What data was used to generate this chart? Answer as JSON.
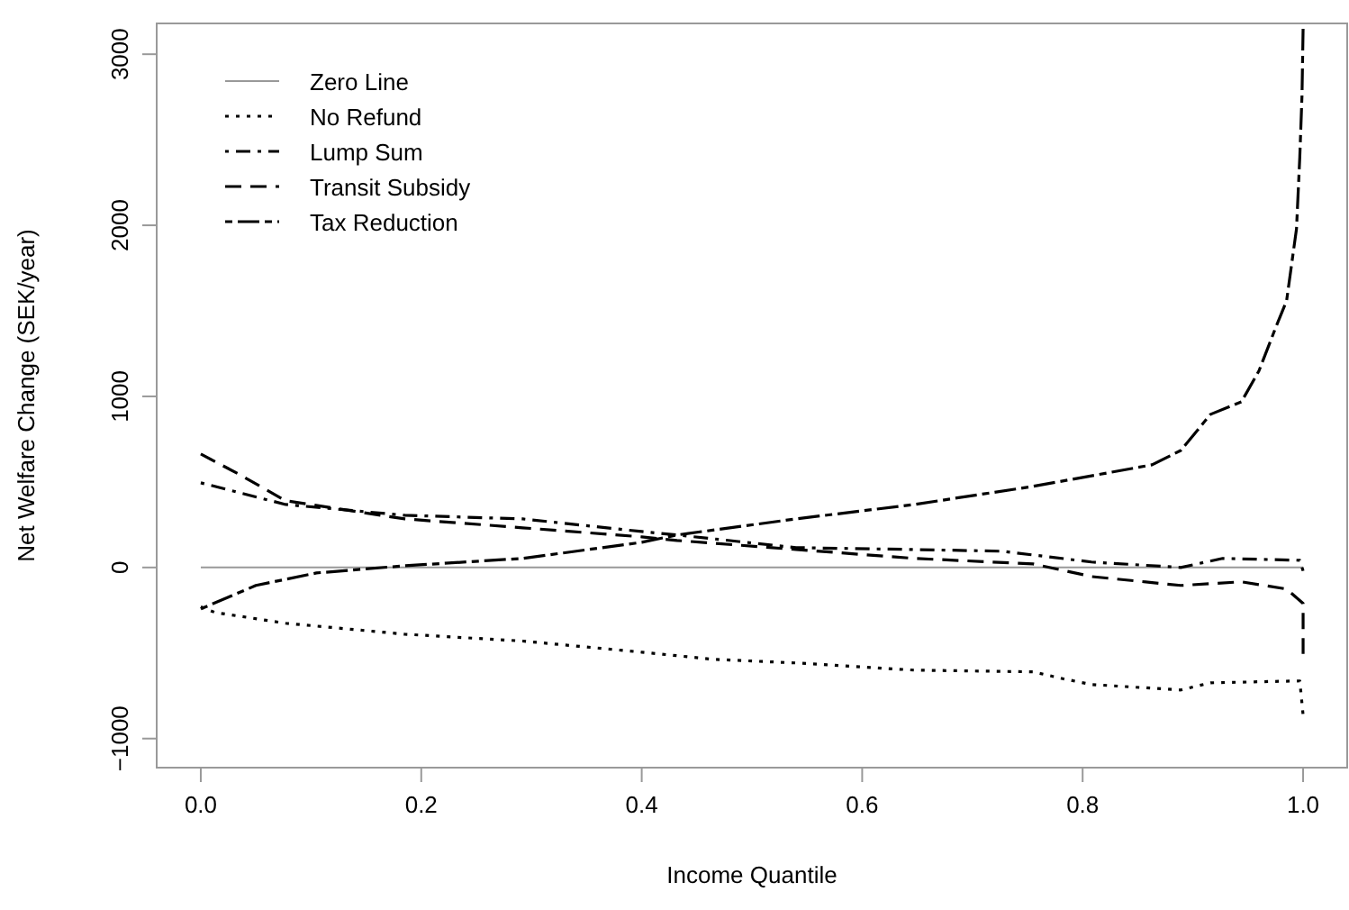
{
  "chart_data": {
    "type": "line",
    "xlabel": "Income Quantile",
    "ylabel": "Net Welfare Change (SEK/year)",
    "xlim": [
      -0.04,
      1.04
    ],
    "ylim": [
      -1170,
      3180
    ],
    "xticks": [
      {
        "value": 0,
        "label": "0.0"
      },
      {
        "value": 0.2,
        "label": "0.2"
      },
      {
        "value": 0.4,
        "label": "0.4"
      },
      {
        "value": 0.6,
        "label": "0.6"
      },
      {
        "value": 0.8,
        "label": "0.8"
      },
      {
        "value": 1,
        "label": "1.0"
      }
    ],
    "yticks": [
      {
        "value": -1000,
        "label": "−1000"
      },
      0,
      1000,
      2000,
      3000
    ],
    "legend": "top left",
    "grid": false,
    "marker": "none",
    "series": [
      {
        "name": "Zero Line",
        "color": "#999999",
        "line_style": "solid",
        "x": [
          0,
          1
        ],
        "values": [
          0,
          0
        ]
      },
      {
        "name": "No Refund",
        "color": "#000000",
        "line_style": "dotted",
        "x": [
          0,
          0.013,
          0.077,
          0.185,
          0.292,
          0.4,
          0.465,
          0.54,
          0.647,
          0.755,
          0.782,
          0.808,
          0.889,
          0.916,
          0.997,
          1.0
        ],
        "values": [
          -230,
          -263,
          -326,
          -390,
          -430,
          -495,
          -537,
          -558,
          -600,
          -610,
          -650,
          -684,
          -716,
          -674,
          -663,
          -863
        ]
      },
      {
        "name": "Lump Sum",
        "color": "#000000",
        "line_style": "dotdash",
        "x": [
          0,
          0.077,
          0.185,
          0.292,
          0.4,
          0.432,
          0.54,
          0.647,
          0.727,
          0.808,
          0.889,
          0.927,
          0.997,
          1.0
        ],
        "values": [
          495,
          368,
          305,
          284,
          210,
          190,
          116,
          105,
          95,
          32,
          0,
          53,
          42,
          -20
        ]
      },
      {
        "name": "Transit Subsidy",
        "color": "#000000",
        "line_style": "dashed",
        "x": [
          0,
          0.034,
          0.077,
          0.185,
          0.292,
          0.4,
          0.432,
          0.54,
          0.647,
          0.755,
          0.808,
          0.889,
          0.944,
          0.985,
          1.0,
          1.0
        ],
        "values": [
          663,
          547,
          390,
          284,
          232,
          179,
          158,
          105,
          53,
          21,
          -53,
          -105,
          -84,
          -126,
          -210,
          -505
        ]
      },
      {
        "name": "Tax Reduction",
        "color": "#000000",
        "line_style": "twodash",
        "x": [
          0,
          0.05,
          0.105,
          0.185,
          0.292,
          0.4,
          0.432,
          0.54,
          0.647,
          0.755,
          0.863,
          0.889,
          0.916,
          0.944,
          0.96,
          0.975,
          0.985,
          0.994,
          0.997,
          0.999,
          1.0
        ],
        "values": [
          -242,
          -105,
          -32,
          10,
          53,
          147,
          190,
          284,
          368,
          474,
          600,
          684,
          895,
          968,
          1150,
          1400,
          1558,
          1979,
          2400,
          2760,
          3150
        ]
      }
    ]
  }
}
